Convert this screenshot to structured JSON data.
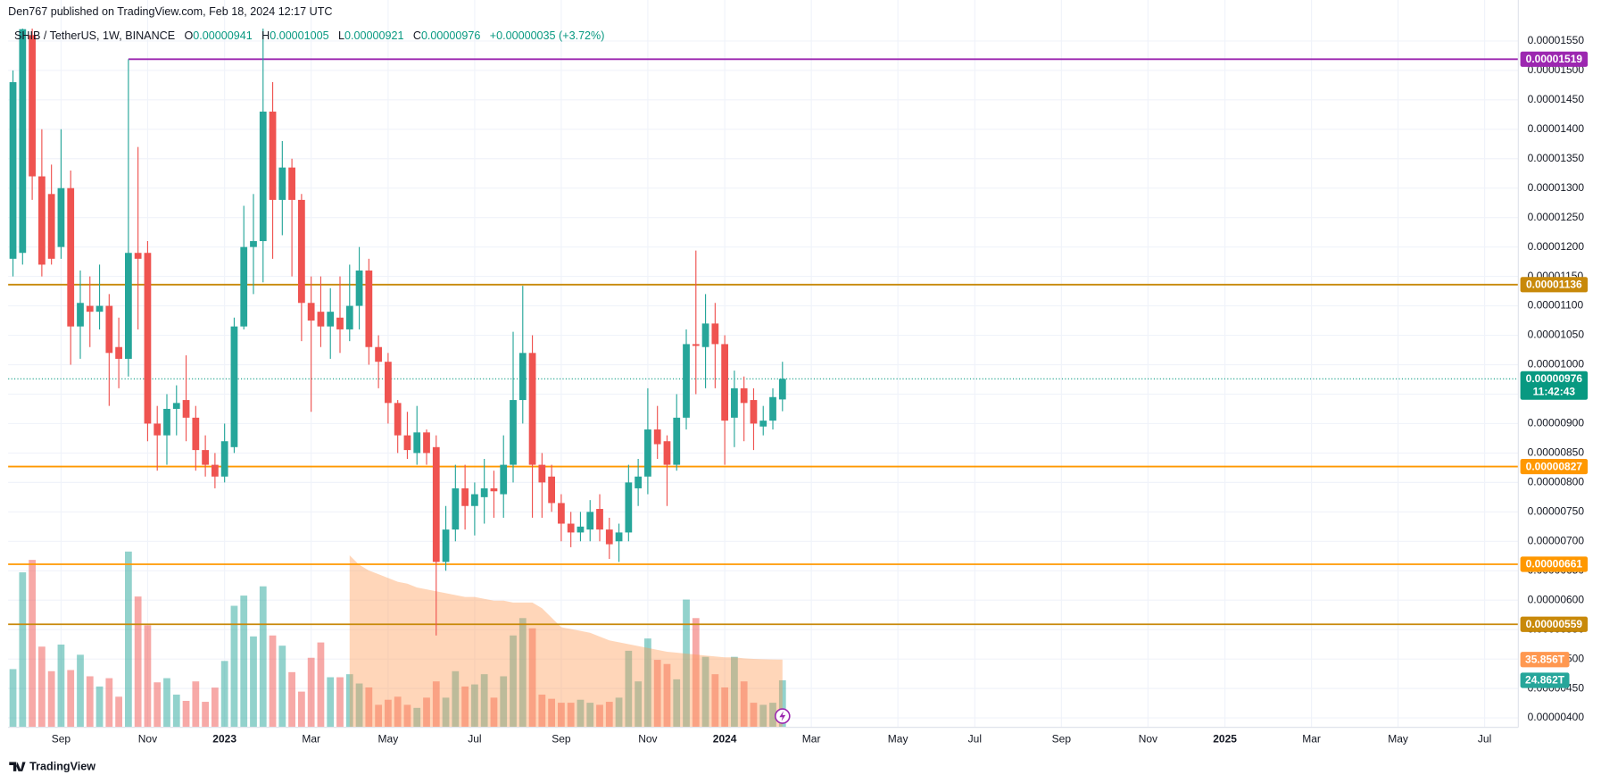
{
  "header": {
    "publisher": "Den767 published on TradingView.com, Feb 18, 2024 12:17 UTC",
    "symbol": "SHIB / TetherUS, 1W, BINANCE",
    "ohlc": [
      {
        "key": "O",
        "text": "0.00000941"
      },
      {
        "key": "H",
        "text": "0.00001005"
      },
      {
        "key": "L",
        "text": "0.00000921"
      },
      {
        "key": "C",
        "text": "0.00000976"
      }
    ],
    "change": "+0.00000035 (+3.72%)"
  },
  "footer": {
    "brand": "TradingView"
  },
  "chart_data": {
    "type": "candlestick",
    "up_color": "#26a69a",
    "down_color": "#ef5350",
    "grid": true,
    "categories": [
      null,
      null,
      null,
      null,
      null,
      null,
      null,
      null,
      null,
      null,
      null,
      null,
      null,
      null,
      null,
      null,
      null,
      null,
      null,
      null,
      null,
      null,
      null,
      null,
      null,
      null,
      null,
      null,
      null,
      null,
      null,
      null,
      null,
      null,
      null,
      null,
      null,
      null,
      null,
      null,
      null,
      null,
      null,
      null,
      null,
      null,
      null,
      null,
      null,
      null,
      null,
      null,
      null,
      null,
      null,
      null,
      null,
      null,
      null,
      null,
      null,
      null,
      null,
      null,
      null,
      null,
      null,
      null,
      null,
      null,
      null,
      null,
      null,
      null,
      null,
      null,
      null,
      null,
      null,
      null,
      null
    ],
    "open": [
      1.18e-05,
      1.19e-05,
      1.56e-05,
      1.32e-05,
      1.29e-05,
      1.2e-05,
      1.3e-05,
      1.065e-05,
      1.1e-05,
      1.09e-05,
      1.1e-05,
      1.03e-05,
      1.01e-05,
      1.19e-05,
      1.19e-05,
      9e-06,
      8.8e-06,
      9.25e-06,
      9.4e-06,
      9.1e-06,
      8.55e-06,
      8.3e-06,
      8.1e-06,
      8.6e-06,
      1.065e-05,
      1.2e-05,
      1.21e-05,
      1.43e-05,
      1.28e-05,
      1.335e-05,
      1.28e-05,
      1.105e-05,
      1.09e-05,
      1.065e-05,
      1.08e-05,
      1.06e-05,
      1.1e-05,
      1.16e-05,
      1.03e-05,
      1.005e-05,
      9.35e-06,
      8.8e-06,
      8.5e-06,
      8.85e-06,
      8.6e-06,
      6.65e-06,
      7.2e-06,
      7.9e-06,
      7.6e-06,
      7.75e-06,
      7.9e-06,
      7.8e-06,
      8.3e-06,
      9.4e-06,
      1.02e-05,
      8.3e-06,
      8.1e-06,
      7.65e-06,
      7.3e-06,
      7.15e-06,
      7.2e-06,
      7.55e-06,
      7.2e-06,
      7e-06,
      7.15e-06,
      7.9e-06,
      8.1e-06,
      8.9e-06,
      8.7e-06,
      8.3e-06,
      9.1e-06,
      1.035e-05,
      1.03e-05,
      1.07e-05,
      1.035e-05,
      9.1e-06,
      9.6e-06,
      9.4e-06,
      8.95e-06,
      9.05e-06,
      9.41e-06
    ],
    "high": [
      1.5e-05,
      1.571e-05,
      1.571e-05,
      1.4e-05,
      1.34e-05,
      1.4e-05,
      1.33e-05,
      1.16e-05,
      1.15e-05,
      1.17e-05,
      1.12e-05,
      1.08e-05,
      1.519e-05,
      1.37e-05,
      1.21e-05,
      9.3e-06,
      9.5e-06,
      9.65e-06,
      1.016e-05,
      9.3e-06,
      8.8e-06,
      8.5e-06,
      9e-06,
      1.08e-05,
      1.27e-05,
      1.29e-05,
      1.571e-05,
      1.48e-05,
      1.38e-05,
      1.35e-05,
      1.29e-05,
      1.15e-05,
      1.15e-05,
      1.13e-05,
      1.15e-05,
      1.17e-05,
      1.2e-05,
      1.18e-05,
      1.05e-05,
      1.02e-05,
      9.4e-06,
      9.2e-06,
      9.3e-06,
      8.9e-06,
      8.8e-06,
      7.6e-06,
      8.3e-06,
      8.3e-06,
      8e-06,
      8.4e-06,
      8.2e-06,
      8.8e-06,
      1.056e-05,
      1.134e-05,
      1.05e-05,
      8.5e-06,
      8.3e-06,
      7.8e-06,
      7.5e-06,
      7.5e-06,
      7.7e-06,
      7.8e-06,
      7.4e-06,
      7.3e-06,
      8.3e-06,
      8.4e-06,
      9.6e-06,
      9.3e-06,
      8.8e-06,
      9.5e-06,
      1.06e-05,
      1.194e-05,
      1.12e-05,
      1.105e-05,
      1.05e-05,
      9.9e-06,
      9.8e-06,
      9.6e-06,
      9.3e-06,
      9.6e-06,
      1.005e-05
    ],
    "low": [
      1.15e-05,
      1.17e-05,
      1.28e-05,
      1.15e-05,
      1.17e-05,
      1.18e-05,
      1e-05,
      1.01e-05,
      1.03e-05,
      1.06e-05,
      9.3e-06,
      9.6e-06,
      9.8e-06,
      1.06e-05,
      8.7e-06,
      8.2e-06,
      8.3e-06,
      8.8e-06,
      8.7e-06,
      8.2e-06,
      8.1e-06,
      7.9e-06,
      8e-06,
      8.5e-06,
      1.06e-05,
      1.12e-05,
      1.14e-05,
      1.18e-05,
      1.22e-05,
      1.15e-05,
      1.04e-05,
      9.2e-06,
      1.03e-05,
      1.01e-05,
      1.02e-05,
      1.04e-05,
      1.06e-05,
      1e-05,
      9.6e-06,
      9e-06,
      8.5e-06,
      8.4e-06,
      8.3e-06,
      8.3e-06,
      5.4e-06,
      6.5e-06,
      7e-06,
      7.2e-06,
      7.1e-06,
      7.3e-06,
      7.4e-06,
      7.4e-06,
      8e-06,
      9e-06,
      7.4e-06,
      7.4e-06,
      7.5e-06,
      7e-06,
      6.9e-06,
      7e-06,
      7e-06,
      7e-06,
      6.7e-06,
      6.65e-06,
      7e-06,
      7.6e-06,
      7.8e-06,
      8.4e-06,
      7.6e-06,
      8.2e-06,
      8.9e-06,
      9.5e-06,
      9.6e-06,
      9.6e-06,
      8.3e-06,
      8.6e-06,
      8.7e-06,
      8.55e-06,
      8.8e-06,
      8.9e-06,
      9.21e-06
    ],
    "close": [
      1.48e-05,
      1.57e-05,
      1.32e-05,
      1.17e-05,
      1.18e-05,
      1.3e-05,
      1.065e-05,
      1.105e-05,
      1.09e-05,
      1.1e-05,
      1.02e-05,
      1.01e-05,
      1.19e-05,
      1.18e-05,
      9e-06,
      8.8e-06,
      9.25e-06,
      9.35e-06,
      9.1e-06,
      8.55e-06,
      8.3e-06,
      8.1e-06,
      8.7e-06,
      1.065e-05,
      1.2e-05,
      1.21e-05,
      1.43e-05,
      1.28e-05,
      1.335e-05,
      1.28e-05,
      1.105e-05,
      1.075e-05,
      1.065e-05,
      1.09e-05,
      1.06e-05,
      1.1e-05,
      1.16e-05,
      1.03e-05,
      1.005e-05,
      9.35e-06,
      8.8e-06,
      8.55e-06,
      8.85e-06,
      8.5e-06,
      6.65e-06,
      7.2e-06,
      7.9e-06,
      7.6e-06,
      7.8e-06,
      7.9e-06,
      7.85e-06,
      8.3e-06,
      9.4e-06,
      1.02e-05,
      8.3e-06,
      8e-06,
      7.65e-06,
      7.3e-06,
      7.15e-06,
      7.25e-06,
      7.5e-06,
      7.2e-06,
      6.95e-06,
      7.15e-06,
      8e-06,
      8.1e-06,
      8.9e-06,
      8.65e-06,
      8.3e-06,
      9.1e-06,
      1.035e-05,
      1.032e-05,
      1.07e-05,
      1.035e-05,
      9.05e-06,
      9.6e-06,
      9.35e-06,
      9e-06,
      9.05e-06,
      9.45e-06,
      9.76e-06
    ],
    "volume": [
      30.8,
      82,
      88.6,
      42.7,
      29.7,
      43.8,
      30.3,
      38.4,
      27,
      21.6,
      26,
      16.2,
      93,
      69.2,
      54,
      23.8,
      26,
      17.3,
      14,
      24.3,
      13.5,
      21,
      35.1,
      64.3,
      69.7,
      48.1,
      74.6,
      48.6,
      43.2,
      29.2,
      18.9,
      36.8,
      44.9,
      26.5,
      26.5,
      28.1,
      23.2,
      21.1,
      11.9,
      14.6,
      16.2,
      11.9,
      10.3,
      15.7,
      24.3,
      15.7,
      29.7,
      21.6,
      22.7,
      28.1,
      15.7,
      27,
      48.6,
      57.8,
      52.4,
      17.3,
      15.1,
      13,
      13,
      14.6,
      13,
      11.9,
      13.5,
      15.7,
      40.5,
      24.3,
      47,
      35.7,
      33.5,
      25.4,
      67.6,
      57.8,
      37.3,
      28.1,
      21.1,
      37.3,
      24.3,
      13,
      11.9,
      13,
      24.862
    ],
    "volume_label": "24.862T",
    "volume_ma": [
      null,
      null,
      null,
      null,
      null,
      null,
      null,
      null,
      null,
      null,
      null,
      null,
      null,
      null,
      null,
      null,
      null,
      null,
      null,
      null,
      null,
      null,
      null,
      null,
      null,
      null,
      null,
      null,
      null,
      null,
      null,
      null,
      null,
      null,
      null,
      91,
      86,
      83,
      81,
      79,
      77,
      76,
      74,
      73,
      72,
      71,
      70,
      69,
      69,
      68,
      67,
      67,
      66,
      66,
      66,
      63,
      58,
      53,
      52,
      51,
      50,
      48,
      46,
      45,
      44,
      43,
      42,
      41,
      40,
      39.5,
      39,
      38.5,
      38,
      37.5,
      37,
      37,
      36.5,
      36.2,
      36,
      35.9,
      35.856
    ],
    "volume_ma_label": "35.856T",
    "volume_ma_color": "#ff9850",
    "volume_ylim": [
      0,
      369.7
    ],
    "ylim": [
      3.84e-06,
      1.571e-05
    ],
    "yticks": [
      {
        "value": 1.55e-05,
        "label": "0.00001550"
      },
      {
        "value": 1.5e-05,
        "label": "0.00001500"
      },
      {
        "value": 1.45e-05,
        "label": "0.00001450"
      },
      {
        "value": 1.4e-05,
        "label": "0.00001400"
      },
      {
        "value": 1.35e-05,
        "label": "0.00001350"
      },
      {
        "value": 1.3e-05,
        "label": "0.00001300"
      },
      {
        "value": 1.25e-05,
        "label": "0.00001250"
      },
      {
        "value": 1.2e-05,
        "label": "0.00001200"
      },
      {
        "value": 1.15e-05,
        "label": "0.00001150"
      },
      {
        "value": 1.1e-05,
        "label": "0.00001100"
      },
      {
        "value": 1.05e-05,
        "label": "0.00001050"
      },
      {
        "value": 1e-05,
        "label": "0.00001000"
      },
      {
        "value": 9.5e-06,
        "label": "0.00000950"
      },
      {
        "value": 9e-06,
        "label": "0.00000900"
      },
      {
        "value": 8.5e-06,
        "label": "0.00000850"
      },
      {
        "value": 8e-06,
        "label": "0.00000800"
      },
      {
        "value": 7.5e-06,
        "label": "0.00000750"
      },
      {
        "value": 7e-06,
        "label": "0.00000700"
      },
      {
        "value": 6.5e-06,
        "label": "0.00000650"
      },
      {
        "value": 6e-06,
        "label": "0.00000600"
      },
      {
        "value": 5.5e-06,
        "label": "0.00000550"
      },
      {
        "value": 5e-06,
        "label": "0.00000500"
      },
      {
        "value": 4.5e-06,
        "label": "0.00000450"
      },
      {
        "value": 4e-06,
        "label": "0.00000400"
      }
    ],
    "xlim": [
      -0.5,
      156.5
    ],
    "xticks": [
      {
        "value": 5,
        "label": "Sep"
      },
      {
        "value": 14,
        "label": "Nov"
      },
      {
        "value": 22,
        "label": "2023"
      },
      {
        "value": 31,
        "label": "Mar"
      },
      {
        "value": 39,
        "label": "May"
      },
      {
        "value": 48,
        "label": "Jul"
      },
      {
        "value": 57,
        "label": "Sep"
      },
      {
        "value": 66,
        "label": "Nov"
      },
      {
        "value": 74,
        "label": "2024"
      },
      {
        "value": 83,
        "label": "Mar"
      },
      {
        "value": 92,
        "label": "May"
      },
      {
        "value": 100,
        "label": "Jul"
      },
      {
        "value": 109,
        "label": "Sep"
      },
      {
        "value": 118,
        "label": "Nov"
      },
      {
        "value": 126,
        "label": "2025"
      },
      {
        "value": 135,
        "label": "Mar"
      },
      {
        "value": 144,
        "label": "May"
      },
      {
        "value": 153,
        "label": "Jul"
      }
    ],
    "levels": [
      {
        "value": 1.519e-05,
        "label": "0.00001519",
        "color": "#9c27b0",
        "start_category": 12
      },
      {
        "value": 1.136e-05,
        "label": "0.00001136",
        "color": "#c8890a"
      },
      {
        "value": 8.27e-06,
        "label": "0.00000827",
        "color": "#ff9800"
      },
      {
        "value": 6.61e-06,
        "label": "0.00000661",
        "color": "#ff9800"
      },
      {
        "value": 5.59e-06,
        "label": "0.00000559",
        "color": "#c8890a"
      }
    ],
    "last_price": {
      "value": 9.76e-06,
      "label": "0.00000976",
      "countdown": "11:42:43",
      "color": "#089981"
    }
  }
}
